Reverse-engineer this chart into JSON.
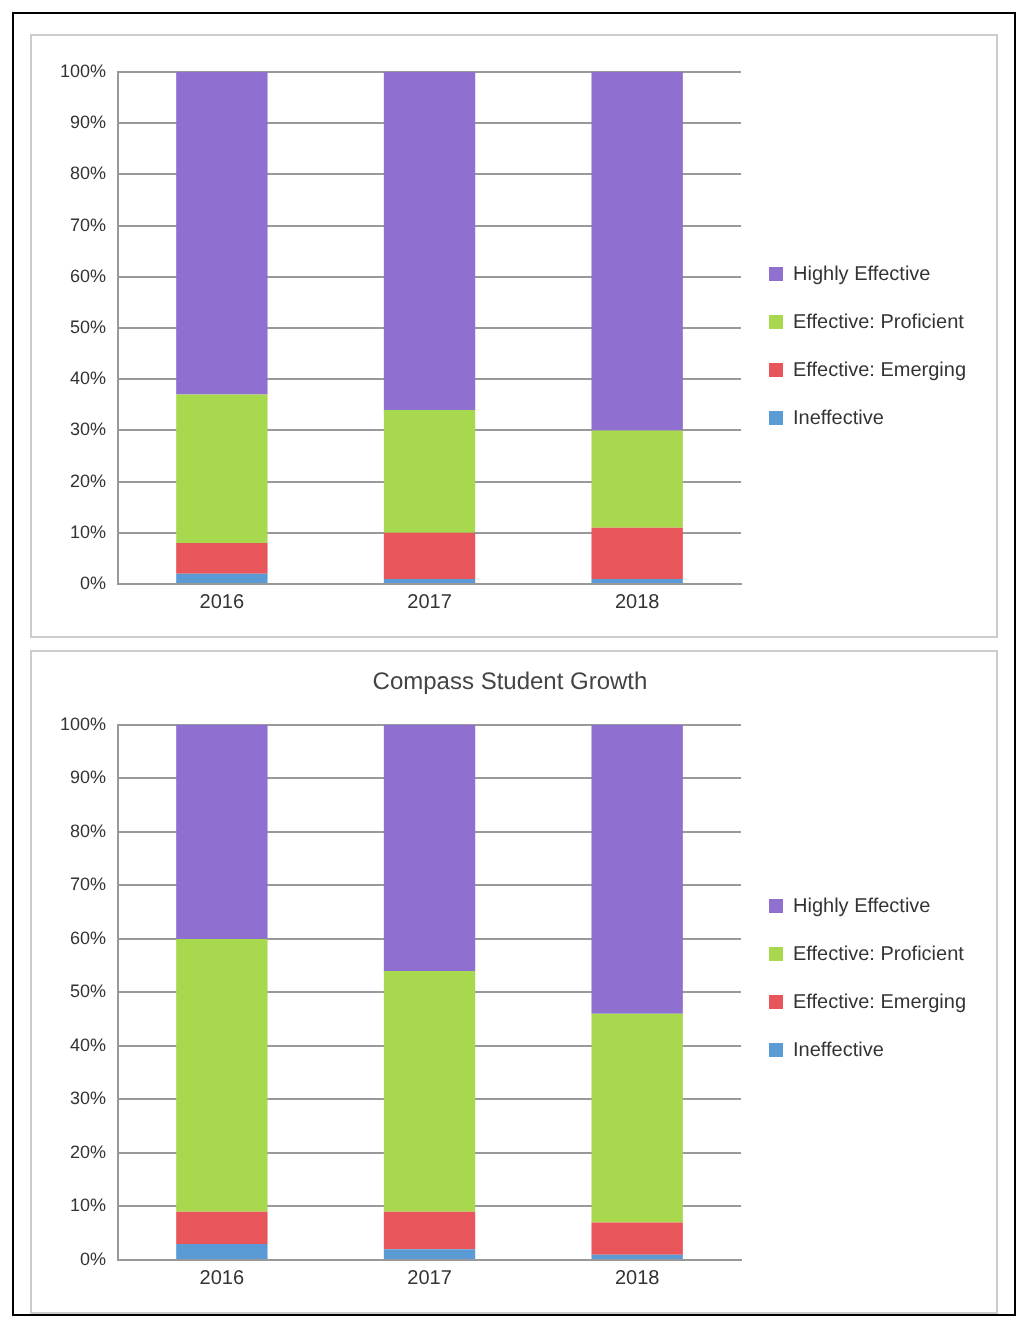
{
  "chart_data": [
    {
      "type": "bar",
      "stacked": true,
      "categories": [
        "2016",
        "2017",
        "2018"
      ],
      "series": [
        {
          "name": "Ineffective",
          "color": "#5b9bd5",
          "values": [
            2,
            1,
            1
          ]
        },
        {
          "name": "Effective: Emerging",
          "color": "#e8555a",
          "values": [
            6,
            9,
            10
          ]
        },
        {
          "name": "Effective: Proficient",
          "color": "#a8d84e",
          "values": [
            29,
            24,
            19
          ]
        },
        {
          "name": "Highly Effective",
          "color": "#8f6fcf",
          "values": [
            63,
            66,
            70
          ]
        }
      ],
      "ylim": [
        0,
        100
      ],
      "yticks": [
        {
          "value": 0,
          "label": "0%"
        },
        {
          "value": 10,
          "label": "10%"
        },
        {
          "value": 20,
          "label": "20%"
        },
        {
          "value": 30,
          "label": "30%"
        },
        {
          "value": 40,
          "label": "40%"
        },
        {
          "value": 50,
          "label": "50%"
        },
        {
          "value": 60,
          "label": "60%"
        },
        {
          "value": 70,
          "label": "70%"
        },
        {
          "value": 80,
          "label": "80%"
        },
        {
          "value": 90,
          "label": "90%"
        },
        {
          "value": 100,
          "label": "100%"
        }
      ],
      "grid": "y",
      "legend": "right"
    },
    {
      "type": "bar",
      "stacked": true,
      "title": "Compass Student Growth",
      "categories": [
        "2016",
        "2017",
        "2018"
      ],
      "series": [
        {
          "name": "Ineffective",
          "color": "#5b9bd5",
          "values": [
            3,
            2,
            1
          ]
        },
        {
          "name": "Effective: Emerging",
          "color": "#e8555a",
          "values": [
            6,
            7,
            6
          ]
        },
        {
          "name": "Effective: Proficient",
          "color": "#a8d84e",
          "values": [
            51,
            45,
            39
          ]
        },
        {
          "name": "Highly Effective",
          "color": "#8f6fcf",
          "values": [
            40,
            46,
            54
          ]
        }
      ],
      "ylim": [
        0,
        100
      ],
      "yticks": [
        {
          "value": 0,
          "label": "0%"
        },
        {
          "value": 10,
          "label": "10%"
        },
        {
          "value": 20,
          "label": "20%"
        },
        {
          "value": 30,
          "label": "30%"
        },
        {
          "value": 40,
          "label": "40%"
        },
        {
          "value": 50,
          "label": "50%"
        },
        {
          "value": 60,
          "label": "60%"
        },
        {
          "value": 70,
          "label": "70%"
        },
        {
          "value": 80,
          "label": "80%"
        },
        {
          "value": 90,
          "label": "90%"
        },
        {
          "value": 100,
          "label": "100%"
        }
      ],
      "grid": "y",
      "legend": "right"
    }
  ]
}
